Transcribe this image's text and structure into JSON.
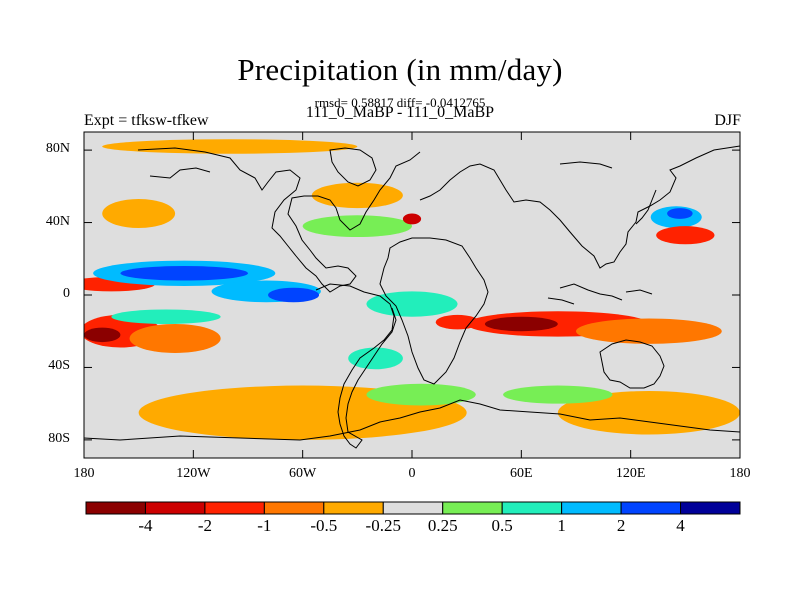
{
  "title": "Precipitation (in mm/day)",
  "subtitle": "rmsd= 0.58817 diff= -0.0412765",
  "case_run": "111_0_MaBP - 111_0_MaBP",
  "left_label": "Expt = tfksw-tfkew",
  "right_label": "DJF",
  "lat_ticks": [
    {
      "label": "80N",
      "value": 80
    },
    {
      "label": "40N",
      "value": 40
    },
    {
      "label": "0",
      "value": 0
    },
    {
      "label": "40S",
      "value": -40
    },
    {
      "label": "80S",
      "value": -80
    }
  ],
  "lon_ticks": [
    {
      "label": "180",
      "value": -180
    },
    {
      "label": "120W",
      "value": -120
    },
    {
      "label": "60W",
      "value": -60
    },
    {
      "label": "0",
      "value": 0
    },
    {
      "label": "60E",
      "value": 60
    },
    {
      "label": "120E",
      "value": 120
    },
    {
      "label": "180",
      "value": 180
    }
  ],
  "colorbar": {
    "colors": [
      "#8b0000",
      "#cc0000",
      "#ff2200",
      "#ff7700",
      "#ffaa00",
      "#dedede",
      "#77ee55",
      "#22eebb",
      "#00bbff",
      "#0044ff",
      "#000099"
    ],
    "labels": [
      "-4",
      "-2",
      "-1",
      "-0.5",
      "-0.25",
      "0.25",
      "0.5",
      "1",
      "2",
      "4"
    ]
  },
  "chart_data": {
    "type": "heatmap",
    "title": "Precipitation (in mm/day)",
    "subtitle": "rmsd= 0.58817 diff= -0.0412765",
    "case_run": "111_0_MaBP - 111_0_MaBP",
    "experiment": "Expt = tfksw-tfkew",
    "season": "DJF",
    "units": "mm/day",
    "xlim": [
      -180,
      180
    ],
    "ylim": [
      -90,
      90
    ],
    "background_level": "-0.25 to 0.25",
    "levels": [
      -4,
      -2,
      -1,
      -0.5,
      -0.25,
      0.25,
      0.5,
      1,
      2,
      4
    ],
    "anomalies": [
      {
        "name": "east-pacific-itcz-dry",
        "lon": -165,
        "lat": 6,
        "rlon": 24,
        "rlat": 4,
        "value": -1.5
      },
      {
        "name": "tropical-pacific-wet",
        "lon": -125,
        "lat": 12,
        "rlon": 50,
        "rlat": 7,
        "value": 1.2
      },
      {
        "name": "pacific-core-wet",
        "lon": -125,
        "lat": 12,
        "rlon": 35,
        "rlat": 4,
        "value": 2.4
      },
      {
        "name": "east-pacific-wet",
        "lon": -80,
        "lat": 2,
        "rlon": 30,
        "rlat": 6,
        "value": 1.5
      },
      {
        "name": "east-pacific-core",
        "lon": -65,
        "lat": 0,
        "rlon": 14,
        "rlat": 4,
        "value": 2.5
      },
      {
        "name": "south-pacific-dry",
        "lon": -160,
        "lat": -20,
        "rlon": 22,
        "rlat": 9,
        "value": -1.2
      },
      {
        "name": "south-pacific-dry-core",
        "lon": -170,
        "lat": -22,
        "rlon": 10,
        "rlat": 4,
        "value": -4.3
      },
      {
        "name": "south-pacific-dry-mid",
        "lon": -130,
        "lat": -24,
        "rlon": 25,
        "rlat": 8,
        "value": -0.6
      },
      {
        "name": "south-pacific-wet-band",
        "lon": -135,
        "lat": -12,
        "rlon": 30,
        "rlat": 4,
        "value": 0.7
      },
      {
        "name": "indian-ocean-dry",
        "lon": 80,
        "lat": -16,
        "rlon": 50,
        "rlat": 7,
        "value": -1.5
      },
      {
        "name": "indian-ocean-dry-core",
        "lon": 60,
        "lat": -16,
        "rlon": 20,
        "rlat": 4,
        "value": -4.3
      },
      {
        "name": "maritime-dry-band",
        "lon": 130,
        "lat": -20,
        "rlon": 40,
        "rlat": 7,
        "value": -0.7
      },
      {
        "name": "kuroshio-wet",
        "lon": 145,
        "lat": 43,
        "rlon": 14,
        "rlat": 6,
        "value": 1.5
      },
      {
        "name": "kuroshio-core",
        "lon": 147,
        "lat": 45,
        "rlon": 7,
        "rlat": 3,
        "value": 2.6
      },
      {
        "name": "japan-dry",
        "lon": 150,
        "lat": 33,
        "rlon": 16,
        "rlat": 5,
        "value": -1.5
      },
      {
        "name": "north-atlantic-dry",
        "lon": -30,
        "lat": 55,
        "rlon": 25,
        "rlat": 7,
        "value": -0.4
      },
      {
        "name": "arctic-dry",
        "lon": -100,
        "lat": 82,
        "rlon": 70,
        "rlat": 4,
        "value": -0.4
      },
      {
        "name": "north-pacific-dry",
        "lon": -150,
        "lat": 45,
        "rlon": 20,
        "rlat": 8,
        "value": -0.4
      },
      {
        "name": "southern-ocean-dry",
        "lon": -60,
        "lat": -65,
        "rlon": 90,
        "rlat": 15,
        "value": -0.4
      },
      {
        "name": "southern-ocean-dry-east",
        "lon": 130,
        "lat": -65,
        "rlon": 50,
        "rlat": 12,
        "value": -0.4
      },
      {
        "name": "south-atlantic-wet",
        "lon": 5,
        "lat": -55,
        "rlon": 30,
        "rlat": 6,
        "value": 0.4
      },
      {
        "name": "south-indian-wet",
        "lon": 80,
        "lat": -55,
        "rlon": 30,
        "rlat": 5,
        "value": 0.4
      },
      {
        "name": "europe-wet",
        "lon": -30,
        "lat": 38,
        "rlon": 30,
        "rlat": 6,
        "value": 0.4
      },
      {
        "name": "mediterranean-dry",
        "lon": 0,
        "lat": 42,
        "rlon": 5,
        "rlat": 3,
        "value": -2.5
      },
      {
        "name": "africa-wet",
        "lon": 0,
        "lat": -5,
        "rlon": 25,
        "rlat": 7,
        "value": 0.5
      },
      {
        "name": "east-africa-dry",
        "lon": 25,
        "lat": -15,
        "rlon": 12,
        "rlat": 4,
        "value": -1.5
      },
      {
        "name": "south-atlantic-wet-east",
        "lon": -20,
        "lat": -35,
        "rlon": 15,
        "rlat": 6,
        "value": 0.5
      }
    ]
  }
}
